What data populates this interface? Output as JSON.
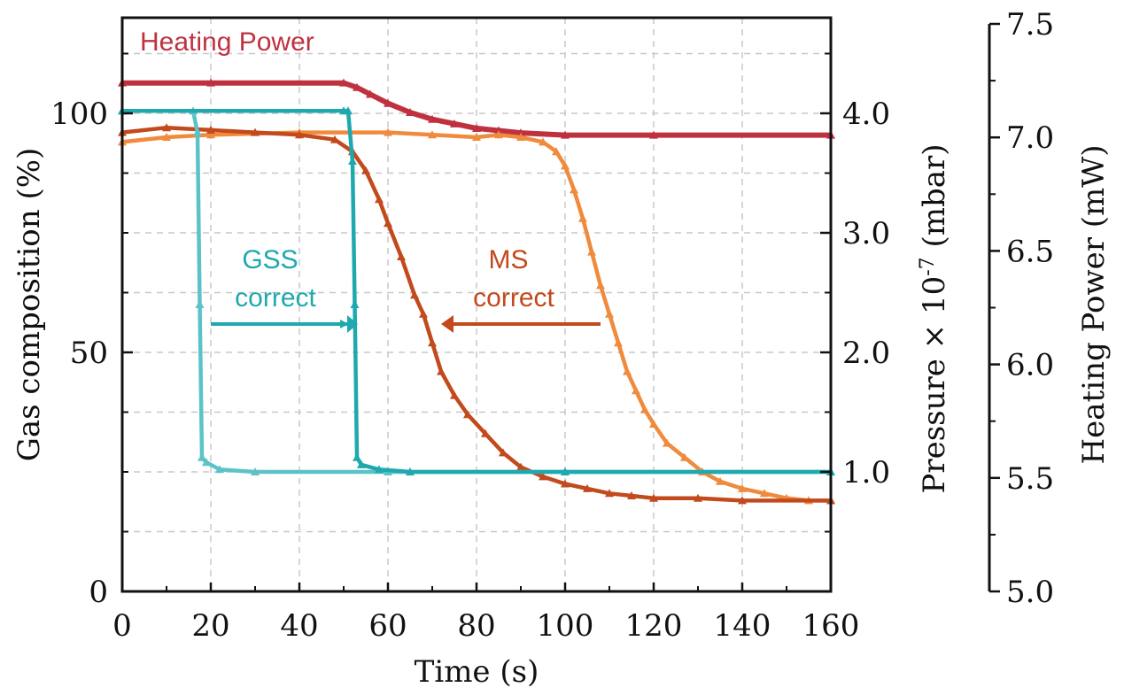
{
  "chart_data": {
    "type": "line",
    "xlabel": "Time (s)",
    "xlim": [
      0,
      160
    ],
    "x_ticks": [
      "0",
      "20",
      "40",
      "60",
      "80",
      "100",
      "120",
      "140",
      "160"
    ],
    "y_left": {
      "label": "Gas composition (%)",
      "lim": [
        0,
        120
      ],
      "ticks": [
        "0",
        "50",
        "100"
      ]
    },
    "y_right1": {
      "label_prefix": "Pressure × 10",
      "label_exp": "-7",
      "label_suffix": " (mbar)",
      "lim": [
        0,
        4.8
      ],
      "ticks": [
        "1.0",
        "2.0",
        "3.0",
        "4.0"
      ]
    },
    "y_right2": {
      "label": "Heating Power  (mW)",
      "lim": [
        5.0,
        7.5
      ],
      "ticks": [
        "5.0",
        "5.5",
        "6.0",
        "6.5",
        "7.0",
        "7.5"
      ]
    },
    "grid": true,
    "colors": {
      "gss_light": "#5BC3C8",
      "gss_dark": "#1FA9AE",
      "ms_light": "#F08A3C",
      "ms_dark": "#C24A1C",
      "heating": "#C0313F"
    },
    "annotations": {
      "heating_label": "Heating Power",
      "gss_line1": "GSS",
      "gss_line2": "correct",
      "ms_line1": "MS",
      "ms_line2": "correct"
    },
    "series": [
      {
        "id": "heating",
        "axis": "right2",
        "color": "#C0313F",
        "points": [
          [
            0,
            7.24
          ],
          [
            20,
            7.24
          ],
          [
            50,
            7.24
          ],
          [
            53,
            7.22
          ],
          [
            56,
            7.19
          ],
          [
            60,
            7.15
          ],
          [
            65,
            7.11
          ],
          [
            70,
            7.08
          ],
          [
            75,
            7.06
          ],
          [
            80,
            7.04
          ],
          [
            85,
            7.03
          ],
          [
            90,
            7.02
          ],
          [
            100,
            7.01
          ],
          [
            120,
            7.01
          ],
          [
            160,
            7.01
          ]
        ]
      },
      {
        "id": "gss_light",
        "axis": "left",
        "color": "#5BC3C8",
        "points": [
          [
            0,
            100.5
          ],
          [
            16,
            100.5
          ],
          [
            17,
            96
          ],
          [
            17.5,
            60
          ],
          [
            18,
            28
          ],
          [
            19,
            27
          ],
          [
            22,
            25.5
          ],
          [
            30,
            25
          ],
          [
            60,
            25
          ],
          [
            100,
            25
          ],
          [
            160,
            25
          ]
        ]
      },
      {
        "id": "gss_dark",
        "axis": "left",
        "color": "#1FA9AE",
        "points": [
          [
            0,
            100.5
          ],
          [
            50,
            100.5
          ],
          [
            51,
            100.5
          ],
          [
            52,
            90
          ],
          [
            52.5,
            60
          ],
          [
            53,
            28
          ],
          [
            54,
            26.5
          ],
          [
            58,
            25.5
          ],
          [
            65,
            25
          ],
          [
            100,
            25
          ],
          [
            160,
            25
          ]
        ]
      },
      {
        "id": "ms_dark",
        "axis": "left",
        "color": "#C24A1C",
        "points": [
          [
            0,
            96
          ],
          [
            10,
            97
          ],
          [
            20,
            96.5
          ],
          [
            30,
            96
          ],
          [
            40,
            95.5
          ],
          [
            48,
            94.5
          ],
          [
            52,
            92
          ],
          [
            55,
            88
          ],
          [
            58,
            82
          ],
          [
            60,
            77
          ],
          [
            63,
            70
          ],
          [
            66,
            62
          ],
          [
            68,
            58
          ],
          [
            70,
            52
          ],
          [
            72,
            46
          ],
          [
            75,
            41
          ],
          [
            78,
            37
          ],
          [
            82,
            33
          ],
          [
            86,
            29
          ],
          [
            90,
            26
          ],
          [
            95,
            24
          ],
          [
            100,
            22.5
          ],
          [
            105,
            21.5
          ],
          [
            110,
            20.5
          ],
          [
            115,
            20
          ],
          [
            120,
            19.5
          ],
          [
            130,
            19.5
          ],
          [
            140,
            19
          ],
          [
            160,
            19
          ]
        ]
      },
      {
        "id": "ms_light",
        "axis": "left",
        "color": "#F08A3C",
        "points": [
          [
            0,
            94
          ],
          [
            10,
            95
          ],
          [
            20,
            95.5
          ],
          [
            40,
            96
          ],
          [
            60,
            96
          ],
          [
            70,
            95.5
          ],
          [
            80,
            95
          ],
          [
            85,
            95.5
          ],
          [
            90,
            95
          ],
          [
            95,
            94
          ],
          [
            98,
            92
          ],
          [
            100,
            89
          ],
          [
            102,
            84
          ],
          [
            104,
            78
          ],
          [
            106,
            71
          ],
          [
            108,
            64
          ],
          [
            110,
            58
          ],
          [
            112,
            52
          ],
          [
            114,
            46
          ],
          [
            116,
            42
          ],
          [
            118,
            38
          ],
          [
            120,
            35
          ],
          [
            123,
            31
          ],
          [
            127,
            28
          ],
          [
            131,
            25
          ],
          [
            135,
            23
          ],
          [
            140,
            21.5
          ],
          [
            145,
            20.5
          ],
          [
            150,
            19.5
          ],
          [
            155,
            19
          ],
          [
            160,
            19
          ]
        ]
      }
    ]
  }
}
